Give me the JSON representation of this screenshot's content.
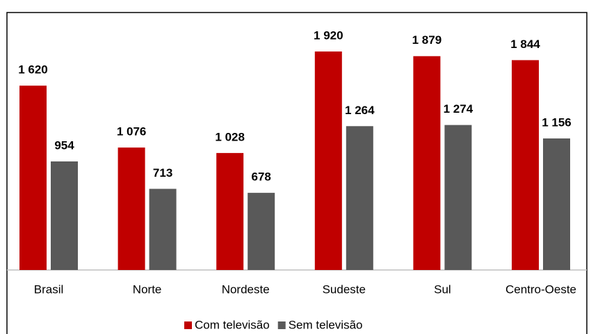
{
  "chart_data": {
    "type": "bar",
    "categories": [
      "Brasil",
      "Norte",
      "Nordeste",
      "Sudeste",
      "Sul",
      "Centro-Oeste"
    ],
    "series": [
      {
        "name": "Com televisão",
        "color": "#c00000",
        "values": [
          1620,
          1076,
          1028,
          1920,
          1879,
          1844
        ],
        "value_labels": [
          "1 620",
          "1 076",
          "1 028",
          "1 920",
          "1 879",
          "1 844"
        ]
      },
      {
        "name": "Sem televisão",
        "color": "#595959",
        "values": [
          954,
          713,
          678,
          1264,
          1274,
          1156
        ],
        "value_labels": [
          "954",
          "713",
          "678",
          "1 264",
          "1 274",
          "1 156"
        ]
      }
    ]
  }
}
